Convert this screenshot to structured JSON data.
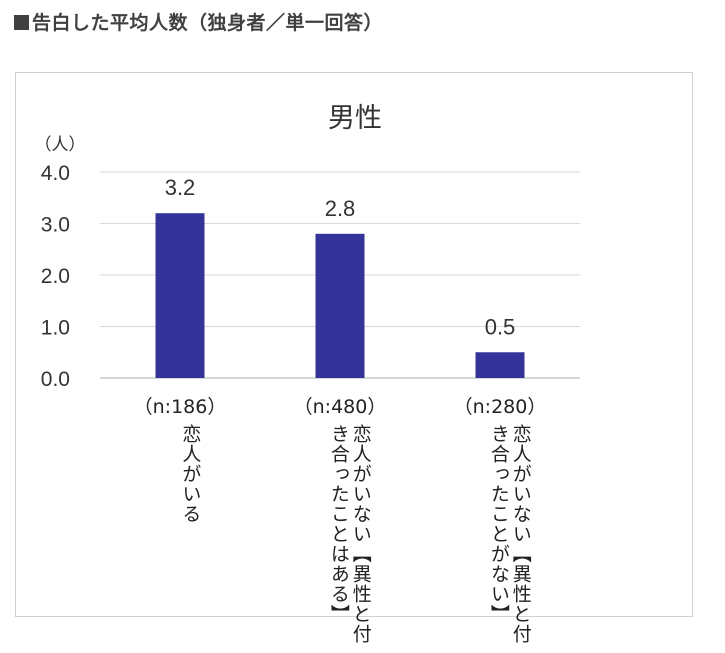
{
  "heading": "告白した平均人数（独身者／単一回答）",
  "chart_data": {
    "type": "bar",
    "title": "男性",
    "ylabel": "（人）",
    "ylim": [
      0,
      4
    ],
    "yticks": [
      "0.0",
      "1.0",
      "2.0",
      "3.0",
      "4.0"
    ],
    "categories": [
      {
        "n": "（n:186）",
        "label": "恋人がいる"
      },
      {
        "n": "（n:480）",
        "label": "恋人がいない【異性と付き合ったことはある】"
      },
      {
        "n": "（n:280）",
        "label": "恋人がいない【異性と付き合ったことがない】"
      }
    ],
    "series": [
      {
        "values": [
          3.2,
          2.8,
          0.5
        ],
        "labels": [
          "3.2",
          "2.8",
          "0.5"
        ]
      }
    ],
    "bar_color": "#33339a",
    "grid": true
  }
}
